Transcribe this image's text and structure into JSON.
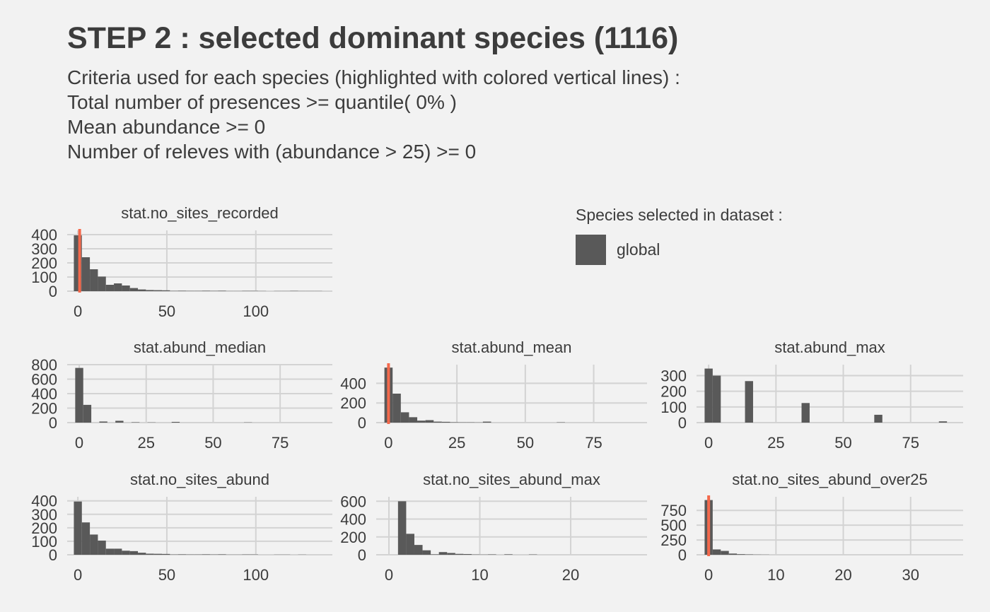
{
  "title": "STEP 2 : selected dominant species (1116)",
  "subtitle_lines": [
    "Criteria used for each species (highlighted with colored vertical lines) :",
    "Total number of presences >= quantile( 0% )",
    "Mean abundance >= 0",
    "Number of releves with (abundance > 25) >= 0"
  ],
  "legend": {
    "title": "Species selected in dataset :",
    "items": [
      {
        "label": "global",
        "color": "#595959"
      }
    ]
  },
  "colors": {
    "background": "#f2f2f2",
    "grid": "#d3d3d3",
    "bar": "#595959",
    "threshold": "#f4694c",
    "text": "#3c3c3c"
  },
  "chart_data": [
    {
      "type": "bar",
      "panel": "stat.no_sites_recorded",
      "x_domain": [
        -6,
        143
      ],
      "y_domain": [
        0,
        430
      ],
      "x_ticks": [
        0,
        50,
        100
      ],
      "y_ticks": [
        0,
        100,
        200,
        300,
        400
      ],
      "bin_width": 4.5,
      "bins": [
        [
          -2.25,
          395
        ],
        [
          2.25,
          240
        ],
        [
          6.75,
          155
        ],
        [
          11.25,
          103
        ],
        [
          15.75,
          45
        ],
        [
          20.25,
          55
        ],
        [
          24.75,
          40
        ],
        [
          29.25,
          22
        ],
        [
          33.75,
          12
        ],
        [
          38.25,
          8
        ],
        [
          42.75,
          7
        ],
        [
          47.25,
          6
        ],
        [
          51.75,
          2
        ],
        [
          56.25,
          3
        ],
        [
          60.75,
          2
        ],
        [
          65.25,
          2
        ],
        [
          69.75,
          3
        ],
        [
          74.25,
          2
        ],
        [
          78.75,
          3
        ],
        [
          83.25,
          1
        ],
        [
          87.75,
          1
        ],
        [
          92.25,
          2
        ],
        [
          96.75,
          2
        ],
        [
          101.25,
          1
        ],
        [
          110.25,
          1
        ],
        [
          114.75,
          1
        ],
        [
          119.25,
          2
        ],
        [
          123.75,
          1
        ],
        [
          128.25,
          1
        ],
        [
          132.75,
          1
        ]
      ],
      "threshold": 1
    },
    {
      "type": "bar",
      "panel": "stat.abund_median",
      "x_domain": [
        -4.5,
        94.5
      ],
      "y_domain": [
        0,
        800
      ],
      "x_ticks": [
        0,
        25,
        50,
        75
      ],
      "y_ticks": [
        0,
        200,
        400,
        600,
        800
      ],
      "bin_width": 3,
      "bins": [
        [
          -1.5,
          755
        ],
        [
          1.5,
          245
        ],
        [
          7.5,
          15
        ],
        [
          13.5,
          25
        ],
        [
          19.5,
          5
        ],
        [
          25.5,
          3
        ],
        [
          34.5,
          10
        ],
        [
          61.5,
          3
        ]
      ],
      "threshold": null
    },
    {
      "type": "bar",
      "panel": "stat.abund_mean",
      "x_domain": [
        -4.5,
        94.5
      ],
      "y_domain": [
        0,
        590
      ],
      "x_ticks": [
        0,
        25,
        50,
        75
      ],
      "y_ticks": [
        0,
        200,
        400
      ],
      "bin_width": 3,
      "bins": [
        [
          -1.5,
          560
        ],
        [
          1.5,
          295
        ],
        [
          4.5,
          105
        ],
        [
          7.5,
          55
        ],
        [
          10.5,
          20
        ],
        [
          13.5,
          25
        ],
        [
          16.5,
          10
        ],
        [
          19.5,
          8
        ],
        [
          22.5,
          4
        ],
        [
          25.5,
          3
        ],
        [
          28.5,
          3
        ],
        [
          31.5,
          2
        ],
        [
          34.5,
          10
        ],
        [
          61.5,
          3
        ]
      ],
      "threshold": 0
    },
    {
      "type": "bar",
      "panel": "stat.abund_max",
      "x_domain": [
        -4.5,
        94.5
      ],
      "y_domain": [
        0,
        370
      ],
      "x_ticks": [
        0,
        25,
        50,
        75
      ],
      "y_ticks": [
        0,
        100,
        200,
        300
      ],
      "bin_width": 3,
      "bins": [
        [
          -1.5,
          345
        ],
        [
          1.5,
          300
        ],
        [
          13.5,
          265
        ],
        [
          34.5,
          125
        ],
        [
          61.5,
          50
        ],
        [
          85.5,
          8
        ]
      ],
      "threshold": null
    },
    {
      "type": "bar",
      "panel": "stat.no_sites_abund",
      "x_domain": [
        -6,
        143
      ],
      "y_domain": [
        0,
        430
      ],
      "x_ticks": [
        0,
        50,
        100
      ],
      "y_ticks": [
        0,
        100,
        200,
        300,
        400
      ],
      "bin_width": 4.5,
      "bins": [
        [
          -2.25,
          395
        ],
        [
          2.25,
          240
        ],
        [
          6.75,
          150
        ],
        [
          11.25,
          105
        ],
        [
          15.75,
          45
        ],
        [
          20.25,
          45
        ],
        [
          24.75,
          30
        ],
        [
          29.25,
          27
        ],
        [
          33.75,
          15
        ],
        [
          38.25,
          8
        ],
        [
          42.75,
          7
        ],
        [
          47.25,
          6
        ],
        [
          51.75,
          2
        ],
        [
          56.25,
          3
        ],
        [
          60.75,
          2
        ],
        [
          65.25,
          2
        ],
        [
          69.75,
          3
        ],
        [
          74.25,
          2
        ],
        [
          78.75,
          3
        ],
        [
          83.25,
          1
        ],
        [
          87.75,
          1
        ],
        [
          92.25,
          2
        ],
        [
          96.75,
          2
        ],
        [
          110.25,
          1
        ],
        [
          114.75,
          1
        ],
        [
          123.75,
          1
        ]
      ],
      "threshold": null
    },
    {
      "type": "bar",
      "panel": "stat.no_sites_abund_max",
      "x_domain": [
        -1.4,
        28.4
      ],
      "y_domain": [
        0,
        650
      ],
      "x_ticks": [
        0,
        10,
        20
      ],
      "y_ticks": [
        0,
        200,
        400,
        600
      ],
      "bin_width": 0.9,
      "bins": [
        [
          1.0,
          600
        ],
        [
          1.9,
          235
        ],
        [
          2.8,
          110
        ],
        [
          3.7,
          50
        ],
        [
          4.6,
          5
        ],
        [
          5.5,
          30
        ],
        [
          6.4,
          20
        ],
        [
          7.3,
          10
        ],
        [
          8.2,
          8
        ],
        [
          9.1,
          3
        ],
        [
          10.0,
          2
        ],
        [
          10.9,
          4
        ],
        [
          12.7,
          5
        ],
        [
          15.4,
          3
        ]
      ],
      "threshold": null
    },
    {
      "type": "bar",
      "panel": "stat.no_sites_abund_over25",
      "x_domain": [
        -1.8,
        37.8
      ],
      "y_domain": [
        0,
        980
      ],
      "x_ticks": [
        0,
        10,
        20,
        30
      ],
      "y_ticks": [
        0,
        250,
        500,
        750
      ],
      "bin_width": 1.2,
      "bins": [
        [
          -0.6,
          925
        ],
        [
          0.6,
          90
        ],
        [
          1.8,
          65
        ],
        [
          3.0,
          20
        ],
        [
          4.2,
          10
        ],
        [
          5.4,
          6
        ],
        [
          6.6,
          3
        ],
        [
          7.8,
          2
        ]
      ],
      "threshold": 0
    }
  ]
}
